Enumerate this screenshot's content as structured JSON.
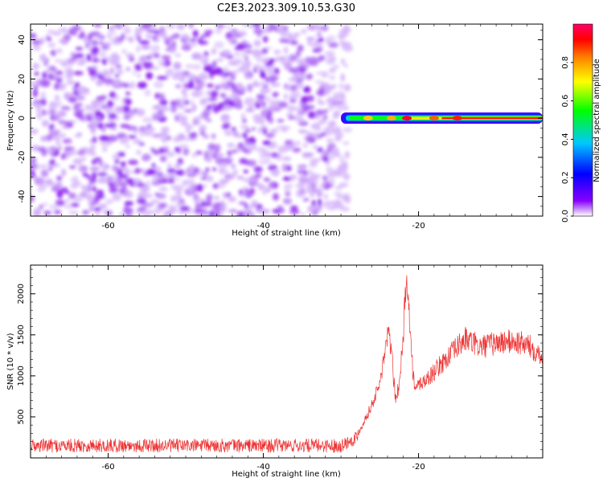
{
  "figure": {
    "title": "C2E3.2023.309.10.53.G30"
  },
  "chart_data": [
    {
      "type": "heatmap",
      "title": "C2E3.2023.309.10.53.G30",
      "xlabel": "Height of straight line (km)",
      "ylabel": "Frequency (Hz)",
      "xlim": [
        -70,
        -4
      ],
      "ylim": [
        -50,
        48
      ],
      "x_ticks": [
        -60,
        -40,
        -20
      ],
      "y_ticks": [
        -40,
        -20,
        0,
        20,
        40
      ],
      "grid": false,
      "noise_region": {
        "x_range": [
          -70,
          -29
        ],
        "y_range": [
          -50,
          48
        ],
        "amplitude_range": [
          0.05,
          0.35
        ]
      },
      "signal_band": {
        "x_range": [
          -30,
          -4
        ],
        "frequency": 0,
        "amplitude_range": [
          0.4,
          1.0
        ]
      },
      "colorbar": {
        "label": "Normalized spectral amplitude",
        "range": [
          0,
          1
        ],
        "ticks": [
          0.0,
          0.2,
          0.4,
          0.6,
          0.8
        ],
        "colormap": [
          "#ffffff",
          "#8800ff",
          "#0000ff",
          "#00c8ff",
          "#00ff00",
          "#ffff00",
          "#ff8800",
          "#ff0000",
          "#ff0066"
        ]
      }
    },
    {
      "type": "line",
      "xlabel": "Height of straight line (km)",
      "ylabel": "SNR (10 * v/v)",
      "xlim": [
        -70,
        -4
      ],
      "ylim": [
        0,
        2350
      ],
      "x_ticks": [
        -60,
        -40,
        -20
      ],
      "y_ticks": [
        500,
        1000,
        1500,
        2000
      ],
      "grid": false,
      "series": [
        {
          "color": "#ee3333",
          "x": [
            -70,
            -60,
            -50,
            -40,
            -30,
            -28,
            -27,
            -26,
            -25,
            -24.5,
            -24,
            -23.5,
            -23,
            -22.5,
            -22,
            -21.7,
            -21.5,
            -21.3,
            -21,
            -20.5,
            -20,
            -19,
            -18,
            -17,
            -16,
            -15,
            -14,
            -13,
            -12,
            -10,
            -8,
            -6,
            -4
          ],
          "y": [
            150,
            150,
            150,
            150,
            150,
            250,
            450,
            650,
            900,
            1200,
            1500,
            1350,
            700,
            900,
            1400,
            2050,
            2300,
            1900,
            1400,
            800,
            900,
            950,
            1050,
            1150,
            1250,
            1350,
            1450,
            1400,
            1350,
            1400,
            1420,
            1380,
            1250
          ]
        }
      ]
    }
  ]
}
